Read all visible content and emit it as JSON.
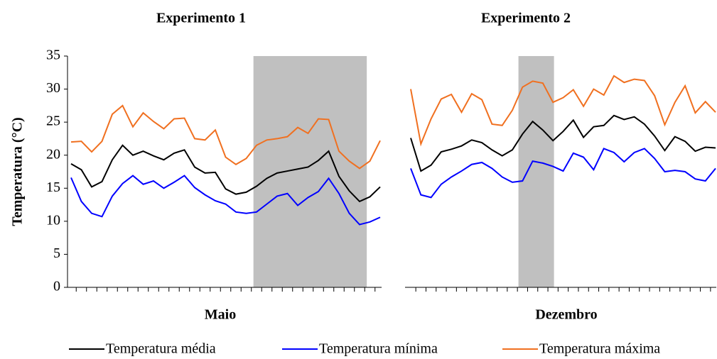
{
  "chart_data": [
    {
      "type": "line",
      "title": "Experimento 1",
      "x_label": "Maio",
      "y_label": "Temperatura (°C)",
      "categories": [
        null,
        null,
        null,
        null,
        null,
        null,
        null,
        null,
        null,
        null,
        null,
        null,
        null,
        null,
        null,
        null,
        null,
        null,
        null,
        null,
        null,
        null,
        null,
        null,
        null,
        null,
        null,
        null,
        null,
        null,
        null
      ],
      "ylim": [
        0,
        35
      ],
      "yticks": [
        0,
        5,
        10,
        15,
        20,
        25,
        30,
        35
      ],
      "highlight": {
        "from": 17.7,
        "to": 28.7,
        "color": "#c0c0c0"
      },
      "series": [
        {
          "name": "Temperatura média",
          "color": "#000000",
          "values": [
            18.7,
            17.8,
            15.2,
            16,
            19.3,
            21.5,
            20,
            20.6,
            19.9,
            19.3,
            20.3,
            20.8,
            18.2,
            17.3,
            17.4,
            14.9,
            14.1,
            14.4,
            15.3,
            16.5,
            17.3,
            17.6,
            17.9,
            18.2,
            19.2,
            20.6,
            16.8,
            14.6,
            13,
            13.7,
            15.2
          ]
        },
        {
          "name": "Temperatura mínima",
          "color": "#0000ff",
          "values": [
            16.6,
            13,
            11.2,
            10.7,
            13.8,
            15.7,
            16.9,
            15.6,
            16.1,
            15,
            15.9,
            16.9,
            15.1,
            14,
            13.1,
            12.6,
            11.4,
            11.2,
            11.4,
            12.6,
            13.8,
            14.2,
            12.4,
            13.6,
            14.5,
            16.5,
            14.2,
            11.2,
            9.5,
            9.9,
            10.6
          ]
        },
        {
          "name": "Temperatura máxima",
          "color": "#f07020",
          "values": [
            22,
            22.1,
            20.5,
            22.1,
            26.2,
            27.5,
            24.3,
            26.4,
            25.1,
            24,
            25.5,
            25.6,
            22.5,
            22.3,
            23.8,
            19.7,
            18.6,
            19.5,
            21.5,
            22.3,
            22.5,
            22.8,
            24.2,
            23.3,
            25.5,
            25.4,
            20.6,
            19.1,
            18,
            19.1,
            22.2
          ]
        }
      ]
    },
    {
      "type": "line",
      "title": "Experimento 2",
      "x_label": "Dezembro",
      "categories": [
        null,
        null,
        null,
        null,
        null,
        null,
        null,
        null,
        null,
        null,
        null,
        null,
        null,
        null,
        null,
        null,
        null,
        null,
        null,
        null,
        null,
        null,
        null,
        null,
        null,
        null,
        null,
        null,
        null,
        null,
        null
      ],
      "ylim": [
        0,
        35
      ],
      "highlight": {
        "from": 10.6,
        "to": 14.1,
        "color": "#c0c0c0"
      },
      "series": [
        {
          "color": "#000000",
          "values": [
            22.6,
            17.6,
            18.5,
            20.5,
            20.9,
            21.4,
            22.3,
            21.9,
            20.8,
            19.9,
            20.8,
            23.2,
            25.1,
            23.8,
            22.2,
            23.6,
            25.3,
            22.7,
            24.3,
            24.5,
            26,
            25.4,
            25.8,
            24.7,
            22.9,
            20.7,
            22.8,
            22.1,
            20.6,
            21.2,
            21.1
          ]
        },
        {
          "color": "#0000ff",
          "values": [
            18,
            14,
            13.6,
            15.6,
            16.7,
            17.6,
            18.6,
            18.9,
            18,
            16.7,
            15.9,
            16.1,
            19.1,
            18.8,
            18.3,
            17.6,
            20.3,
            19.7,
            17.8,
            21,
            20.4,
            19,
            20.4,
            21,
            19.5,
            17.5,
            17.7,
            17.5,
            16.4,
            16.1,
            18
          ]
        },
        {
          "color": "#f07020",
          "values": [
            30,
            21.7,
            25.5,
            28.5,
            29.2,
            26.5,
            29.3,
            28.4,
            24.7,
            24.5,
            26.8,
            30.3,
            31.2,
            30.9,
            28,
            28.7,
            29.9,
            27.4,
            30,
            29.1,
            32,
            31,
            31.5,
            31.3,
            29,
            24.6,
            28,
            30.5,
            26.4,
            28.1,
            26.5
          ]
        }
      ]
    }
  ]
}
